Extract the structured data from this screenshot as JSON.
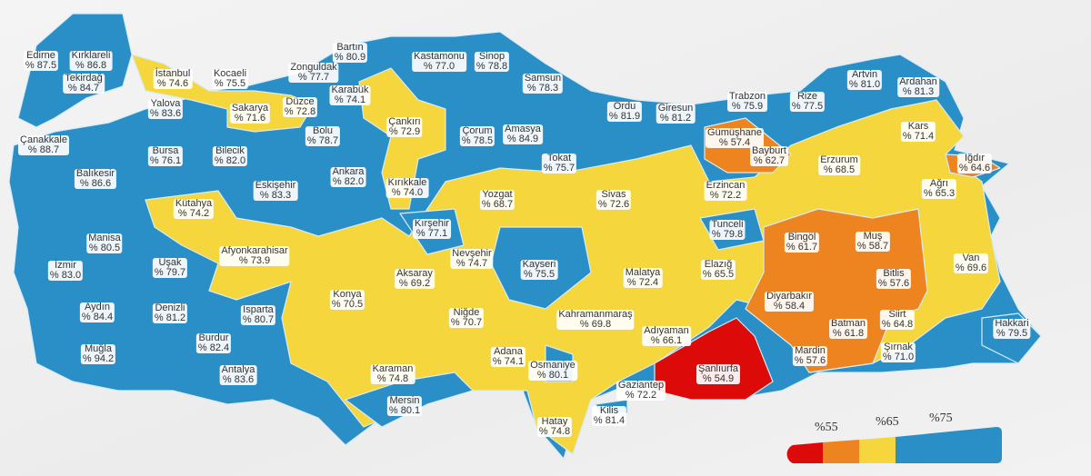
{
  "colors": {
    "below_55": "#dd0a0a",
    "55_65": "#ee8420",
    "65_75": "#f5d63d",
    "above_75": "#2a8fc6",
    "sea": "#e9e9e9",
    "border": "#cfe6f3"
  },
  "legend": {
    "thresholds": [
      "%55",
      "%65",
      "%75"
    ]
  },
  "provinces": [
    {
      "name": "Kırklareli",
      "value": "% 86.8",
      "band": "above_75"
    },
    {
      "name": "Edirne",
      "value": "% 87.5",
      "band": "above_75"
    },
    {
      "name": "Tekirdağ",
      "value": "% 84.7",
      "band": "above_75"
    },
    {
      "name": "İstanbul",
      "value": "% 74.6",
      "band": "65_75"
    },
    {
      "name": "Kocaeli",
      "value": "% 75.5",
      "band": "above_75"
    },
    {
      "name": "Zonguldak",
      "value": "% 77.7",
      "band": "above_75"
    },
    {
      "name": "Bartın",
      "value": "% 80.9",
      "band": "above_75"
    },
    {
      "name": "Kastamonu",
      "value": "% 77.0",
      "band": "above_75"
    },
    {
      "name": "Sinop",
      "value": "% 78.8",
      "band": "above_75"
    },
    {
      "name": "Samsun",
      "value": "% 78.3",
      "band": "above_75"
    },
    {
      "name": "Yalova",
      "value": "% 83.6",
      "band": "above_75"
    },
    {
      "name": "Sakarya",
      "value": "% 71.6",
      "band": "65_75"
    },
    {
      "name": "Düzce",
      "value": "% 72.8",
      "band": "65_75"
    },
    {
      "name": "Karabük",
      "value": "% 74.1",
      "band": "65_75"
    },
    {
      "name": "Çankırı",
      "value": "% 72.9",
      "band": "65_75"
    },
    {
      "name": "Çorum",
      "value": "% 78.5",
      "band": "above_75"
    },
    {
      "name": "Amasya",
      "value": "% 84.9",
      "band": "above_75"
    },
    {
      "name": "Ordu",
      "value": "% 81.9",
      "band": "above_75"
    },
    {
      "name": "Giresun",
      "value": "% 81.2",
      "band": "above_75"
    },
    {
      "name": "Trabzon",
      "value": "% 75.9",
      "band": "above_75"
    },
    {
      "name": "Rize",
      "value": "% 77.5",
      "band": "above_75"
    },
    {
      "name": "Artvin",
      "value": "% 81.0",
      "band": "above_75"
    },
    {
      "name": "Ardahan",
      "value": "% 81.3",
      "band": "above_75"
    },
    {
      "name": "Gümüşhane",
      "value": "% 57.4",
      "band": "55_65"
    },
    {
      "name": "Bayburt",
      "value": "% 62.7",
      "band": "55_65"
    },
    {
      "name": "Kars",
      "value": "% 71.4",
      "band": "65_75"
    },
    {
      "name": "Erzurum",
      "value": "% 68.5",
      "band": "65_75"
    },
    {
      "name": "Iğdır",
      "value": "% 64.6",
      "band": "55_65"
    },
    {
      "name": "Ağrı",
      "value": "% 65.3",
      "band": "65_75"
    },
    {
      "name": "Çanakkale",
      "value": "% 88.7",
      "band": "above_75"
    },
    {
      "name": "Balıkesir",
      "value": "% 86.6",
      "band": "above_75"
    },
    {
      "name": "Bursa",
      "value": "% 76.1",
      "band": "above_75"
    },
    {
      "name": "Bilecik",
      "value": "% 82.0",
      "band": "above_75"
    },
    {
      "name": "Bolu",
      "value": "% 78.7",
      "band": "above_75"
    },
    {
      "name": "Ankara",
      "value": "% 82.0",
      "band": "above_75"
    },
    {
      "name": "Eskişehir",
      "value": "% 83.3",
      "band": "above_75"
    },
    {
      "name": "Kırıkkale",
      "value": "% 74.0",
      "band": "65_75"
    },
    {
      "name": "Tokat",
      "value": "% 75.7",
      "band": "above_75"
    },
    {
      "name": "Yozgat",
      "value": "% 68.7",
      "band": "65_75"
    },
    {
      "name": "Sivas",
      "value": "% 72.6",
      "band": "65_75"
    },
    {
      "name": "Erzincan",
      "value": "% 72.2",
      "band": "65_75"
    },
    {
      "name": "Kütahya",
      "value": "% 74.2",
      "band": "65_75"
    },
    {
      "name": "Kırşehir",
      "value": "% 77.1",
      "band": "above_75"
    },
    {
      "name": "Tunceli",
      "value": "% 79.8",
      "band": "above_75"
    },
    {
      "name": "Bingöl",
      "value": "% 61.7",
      "band": "55_65"
    },
    {
      "name": "Muş",
      "value": "% 58.7",
      "band": "55_65"
    },
    {
      "name": "Manisa",
      "value": "% 80.5",
      "band": "above_75"
    },
    {
      "name": "İzmir",
      "value": "% 83.0",
      "band": "above_75"
    },
    {
      "name": "Uşak",
      "value": "% 79.7",
      "band": "above_75"
    },
    {
      "name": "Afyonkarahisar",
      "value": "% 73.9",
      "band": "65_75"
    },
    {
      "name": "Nevşehir",
      "value": "% 74.7",
      "band": "65_75"
    },
    {
      "name": "Kayseri",
      "value": "% 75.5",
      "band": "above_75"
    },
    {
      "name": "Aksaray",
      "value": "% 69.2",
      "band": "65_75"
    },
    {
      "name": "Konya",
      "value": "% 70.5",
      "band": "65_75"
    },
    {
      "name": "Isparta",
      "value": "% 80.7",
      "band": "above_75"
    },
    {
      "name": "Malatya",
      "value": "% 72.4",
      "band": "65_75"
    },
    {
      "name": "Elazığ",
      "value": "% 65.5",
      "band": "65_75"
    },
    {
      "name": "Van",
      "value": "% 69.6",
      "band": "65_75"
    },
    {
      "name": "Bitlis",
      "value": "% 57.6",
      "band": "55_65"
    },
    {
      "name": "Diyarbakır",
      "value": "% 58.4",
      "band": "55_65"
    },
    {
      "name": "Denizli",
      "value": "% 81.2",
      "band": "above_75"
    },
    {
      "name": "Aydın",
      "value": "% 84.4",
      "band": "above_75"
    },
    {
      "name": "Burdur",
      "value": "% 82.4",
      "band": "above_75"
    },
    {
      "name": "Muğla",
      "value": "% 94.2",
      "band": "above_75"
    },
    {
      "name": "Niğde",
      "value": "% 70.7",
      "band": "65_75"
    },
    {
      "name": "Kahramanmaraş",
      "value": "% 69.8",
      "band": "65_75"
    },
    {
      "name": "Adıyaman",
      "value": "% 66.1",
      "band": "65_75"
    },
    {
      "name": "Şanlıurfa",
      "value": "% 54.9",
      "band": "below_55"
    },
    {
      "name": "Siirt",
      "value": "% 64.8",
      "band": "55_65"
    },
    {
      "name": "Batman",
      "value": "% 61.8",
      "band": "55_65"
    },
    {
      "name": "Mardin",
      "value": "% 57.6",
      "band": "55_65"
    },
    {
      "name": "Şırnak",
      "value": "% 71.0",
      "band": "65_75"
    },
    {
      "name": "Hakkari",
      "value": "% 79.5",
      "band": "above_75"
    },
    {
      "name": "Antalya",
      "value": "% 83.6",
      "band": "above_75"
    },
    {
      "name": "Karaman",
      "value": "% 74.8",
      "band": "65_75"
    },
    {
      "name": "Adana",
      "value": "% 74.1",
      "band": "65_75"
    },
    {
      "name": "Osmaniye",
      "value": "% 80.1",
      "band": "above_75"
    },
    {
      "name": "Gaziantep",
      "value": "% 72.2",
      "band": "65_75"
    },
    {
      "name": "Kilis",
      "value": "% 81.4",
      "band": "above_75"
    },
    {
      "name": "Hatay",
      "value": "% 74.8",
      "band": "65_75"
    },
    {
      "name": "Mersin",
      "value": "% 80.1",
      "band": "above_75"
    }
  ]
}
